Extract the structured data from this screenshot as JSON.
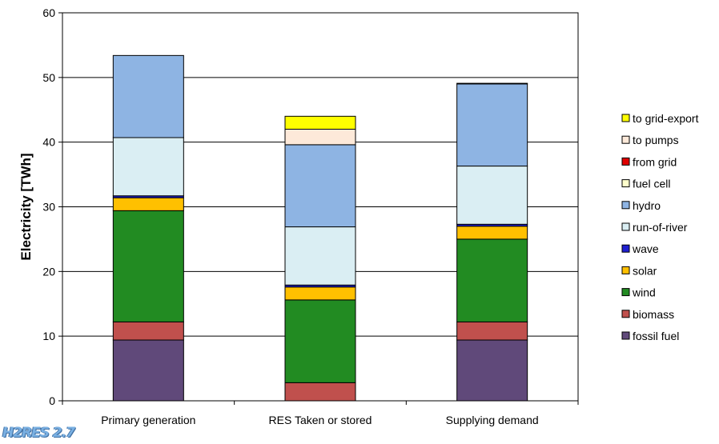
{
  "chart_data": {
    "type": "bar",
    "stacked": true,
    "title": "",
    "xlabel": "",
    "ylabel": "Electricity [TWh]",
    "ylim": [
      0,
      60
    ],
    "yticks": [
      0,
      10,
      20,
      30,
      40,
      50,
      60
    ],
    "grid": true,
    "legend_position": "right",
    "categories": [
      "Primary generation",
      "RES Taken or stored",
      "Supplying demand"
    ],
    "series": [
      {
        "name": "fossil fuel",
        "color": "#60497a",
        "values": [
          9.4,
          0,
          9.4
        ]
      },
      {
        "name": "biomass",
        "color": "#c0504d",
        "values": [
          2.8,
          2.8,
          2.8
        ]
      },
      {
        "name": "wind",
        "color": "#228b22",
        "values": [
          17.2,
          12.8,
          12.8
        ]
      },
      {
        "name": "solar",
        "color": "#ffc000",
        "values": [
          2.0,
          2.0,
          2.0
        ]
      },
      {
        "name": "wave",
        "color": "#1f1fd0",
        "values": [
          0.3,
          0.3,
          0.3
        ]
      },
      {
        "name": "run-of-river",
        "color": "#daeef3",
        "values": [
          9.0,
          9.0,
          9.0
        ]
      },
      {
        "name": "hydro",
        "color": "#8eb4e3",
        "values": [
          12.7,
          12.7,
          12.7
        ]
      },
      {
        "name": "fuel cell",
        "color": "#ffffcc",
        "values": [
          0,
          0,
          0
        ]
      },
      {
        "name": "from grid",
        "color": "#e00000",
        "values": [
          0,
          0,
          0.1
        ]
      },
      {
        "name": "to pumps",
        "color": "#fde9d9",
        "values": [
          0,
          2.4,
          0
        ]
      },
      {
        "name": "to grid-export",
        "color": "#ffff00",
        "values": [
          0,
          2.0,
          0
        ]
      }
    ]
  },
  "logo_text": "H2RES 2.7"
}
